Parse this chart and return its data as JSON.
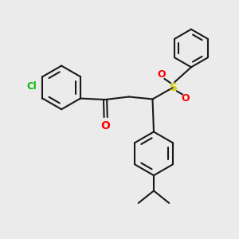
{
  "bg_color": "#ebebeb",
  "bond_color": "#1a1a1a",
  "cl_color": "#00bb00",
  "o_color": "#ff0000",
  "s_color": "#cccc00",
  "lw": 1.5,
  "xlim": [
    0,
    10
  ],
  "ylim": [
    0,
    10
  ],
  "figsize": [
    3.0,
    3.0
  ],
  "dpi": 100
}
